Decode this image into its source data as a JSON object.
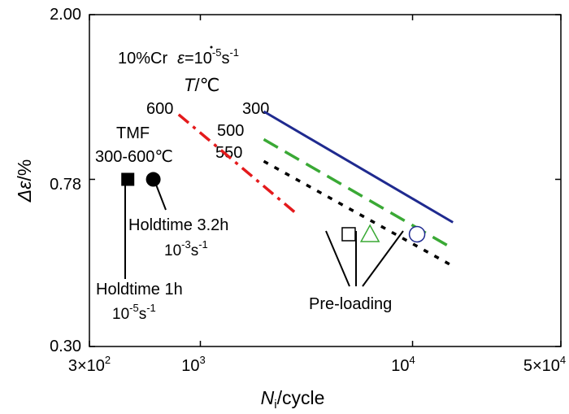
{
  "chart_data": {
    "type": "line",
    "xscale": "log",
    "yscale": "log",
    "xlim": [
      300,
      50000
    ],
    "ylim": [
      0.3,
      2.0
    ],
    "x_ticks": [
      {
        "value": 300,
        "label_base": "3×10",
        "label_exp": "2"
      },
      {
        "value": 1000,
        "label_base": "10",
        "label_exp": "3"
      },
      {
        "value": 10000,
        "label_base": "10",
        "label_exp": "4"
      },
      {
        "value": 50000,
        "label_base": "5×10",
        "label_exp": "4"
      }
    ],
    "y_ticks": [
      {
        "value": 0.3,
        "label": "0.30"
      },
      {
        "value": 0.78,
        "label": "0.78"
      },
      {
        "value": 2.0,
        "label": "2.00"
      }
    ],
    "xlabel": {
      "main": "N",
      "sub": "i",
      "rest": "/cycle"
    },
    "ylabel": {
      "greek": "Δε",
      "rest": "/%"
    },
    "header": {
      "material": "10%Cr",
      "rate_symbol": "ε",
      "rate_eq": "=10",
      "rate_exp": "-5",
      "rate_unit": "s",
      "rate_unit_exp": "-1"
    },
    "temp_legend_title": {
      "var": "T",
      "unit": "/℃"
    },
    "series": [
      {
        "name": "300",
        "color": "#1f2a8f",
        "style": "solid",
        "x": [
          1990,
          15500
        ],
        "y": [
          1.15,
          0.61
        ]
      },
      {
        "name": "500",
        "color": "#3aa935",
        "style": "dashed",
        "x": [
          1990,
          15500
        ],
        "y": [
          0.98,
          0.525
        ]
      },
      {
        "name": "550",
        "color": "#000000",
        "style": "dotted",
        "x": [
          1990,
          15500
        ],
        "y": [
          0.865,
          0.475
        ]
      },
      {
        "name": "600",
        "color": "#e41a1c",
        "style": "dashdot",
        "x": [
          790,
          2900
        ],
        "y": [
          1.13,
          0.635
        ]
      }
    ],
    "tmf_label": {
      "line1": "TMF",
      "line2": "300-600℃"
    },
    "tmf_points": [
      {
        "marker": "square-filled",
        "x": 455,
        "y": 0.78,
        "note_line1": "Holdtime 1h",
        "note_base": "10",
        "note_exp": "-5",
        "note_unit": "s",
        "note_unit_exp": "-1"
      },
      {
        "marker": "circle-filled",
        "x": 600,
        "y": 0.78,
        "note_line1": "Holdtime 3.2h",
        "note_base": "10",
        "note_exp": "-3",
        "note_unit": "s",
        "note_unit_exp": "-1"
      }
    ],
    "preload_label": "Pre-loading",
    "preload_points": [
      {
        "marker": "square-open",
        "color": "#000000",
        "x": 5000,
        "y": 0.57
      },
      {
        "marker": "triangle-open",
        "color": "#3aa935",
        "x": 6300,
        "y": 0.57
      },
      {
        "marker": "circle-open",
        "color": "#1f2a8f",
        "x": 10500,
        "y": 0.57
      }
    ]
  }
}
